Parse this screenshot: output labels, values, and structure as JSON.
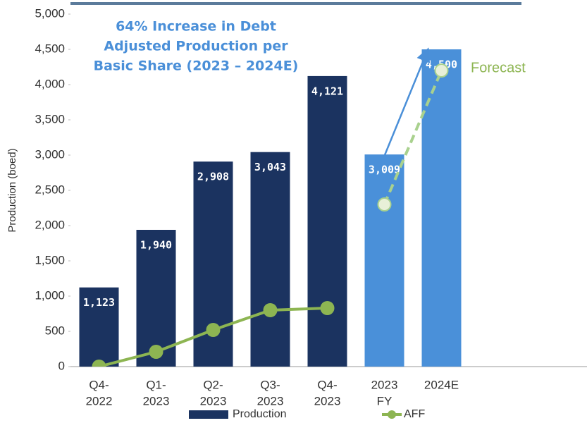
{
  "chart_data": {
    "type": "bar",
    "annotation": [
      "64% Increase in Debt",
      "Adjusted Production per",
      "Basic Share (2023 – 2024E)"
    ],
    "forecast_label": "Forecast",
    "y_label": "Production (boed)",
    "categories": [
      [
        "Q4-",
        "2022"
      ],
      [
        "Q1-",
        "2023"
      ],
      [
        "Q2-",
        "2023"
      ],
      [
        "Q3-",
        "2023"
      ],
      [
        "Q4-",
        "2023"
      ],
      [
        "2023",
        "FY"
      ],
      [
        "2024E"
      ],
      null,
      null
    ],
    "ylim": [
      0,
      5000
    ],
    "yticks": [
      0,
      {
        "value": 500,
        "label": "500"
      },
      {
        "value": 1000,
        "label": "1,000"
      },
      {
        "value": 1500,
        "label": "1,500"
      },
      {
        "value": 2000,
        "label": "2,000"
      },
      {
        "value": 2500,
        "label": "2,500"
      },
      {
        "value": 3000,
        "label": "3,000"
      },
      {
        "value": 3500,
        "label": "3,500"
      },
      {
        "value": 4000,
        "label": "4,000"
      },
      {
        "value": 4500,
        "label": "4,500"
      },
      {
        "value": 5000,
        "label": "5,000"
      }
    ],
    "series": [
      {
        "name": "Production",
        "type": "bar",
        "colors": [
          "#1b3360",
          "#1b3360",
          "#1b3360",
          "#1b3360",
          "#1b3360",
          "#4a90d9",
          "#4a90d9",
          null,
          null
        ],
        "color": "#1b3360",
        "values": [
          1123,
          1940,
          2908,
          3043,
          4121,
          3009,
          4500,
          null,
          null
        ],
        "value_labels": [
          "1,123",
          "1,940",
          "2,908",
          "3,043",
          "4,121",
          "3,009",
          "4,500",
          null,
          null
        ]
      },
      {
        "name": "AFF",
        "type": "line",
        "color": "#8db552",
        "values": [
          0,
          210,
          520,
          800,
          830,
          null,
          null,
          null,
          null
        ]
      }
    ],
    "forecast": {
      "color": "#a9d18e",
      "dashed": true,
      "values": [
        null,
        null,
        null,
        null,
        null,
        2300,
        4200,
        null,
        null
      ]
    },
    "legend": "bottom"
  }
}
